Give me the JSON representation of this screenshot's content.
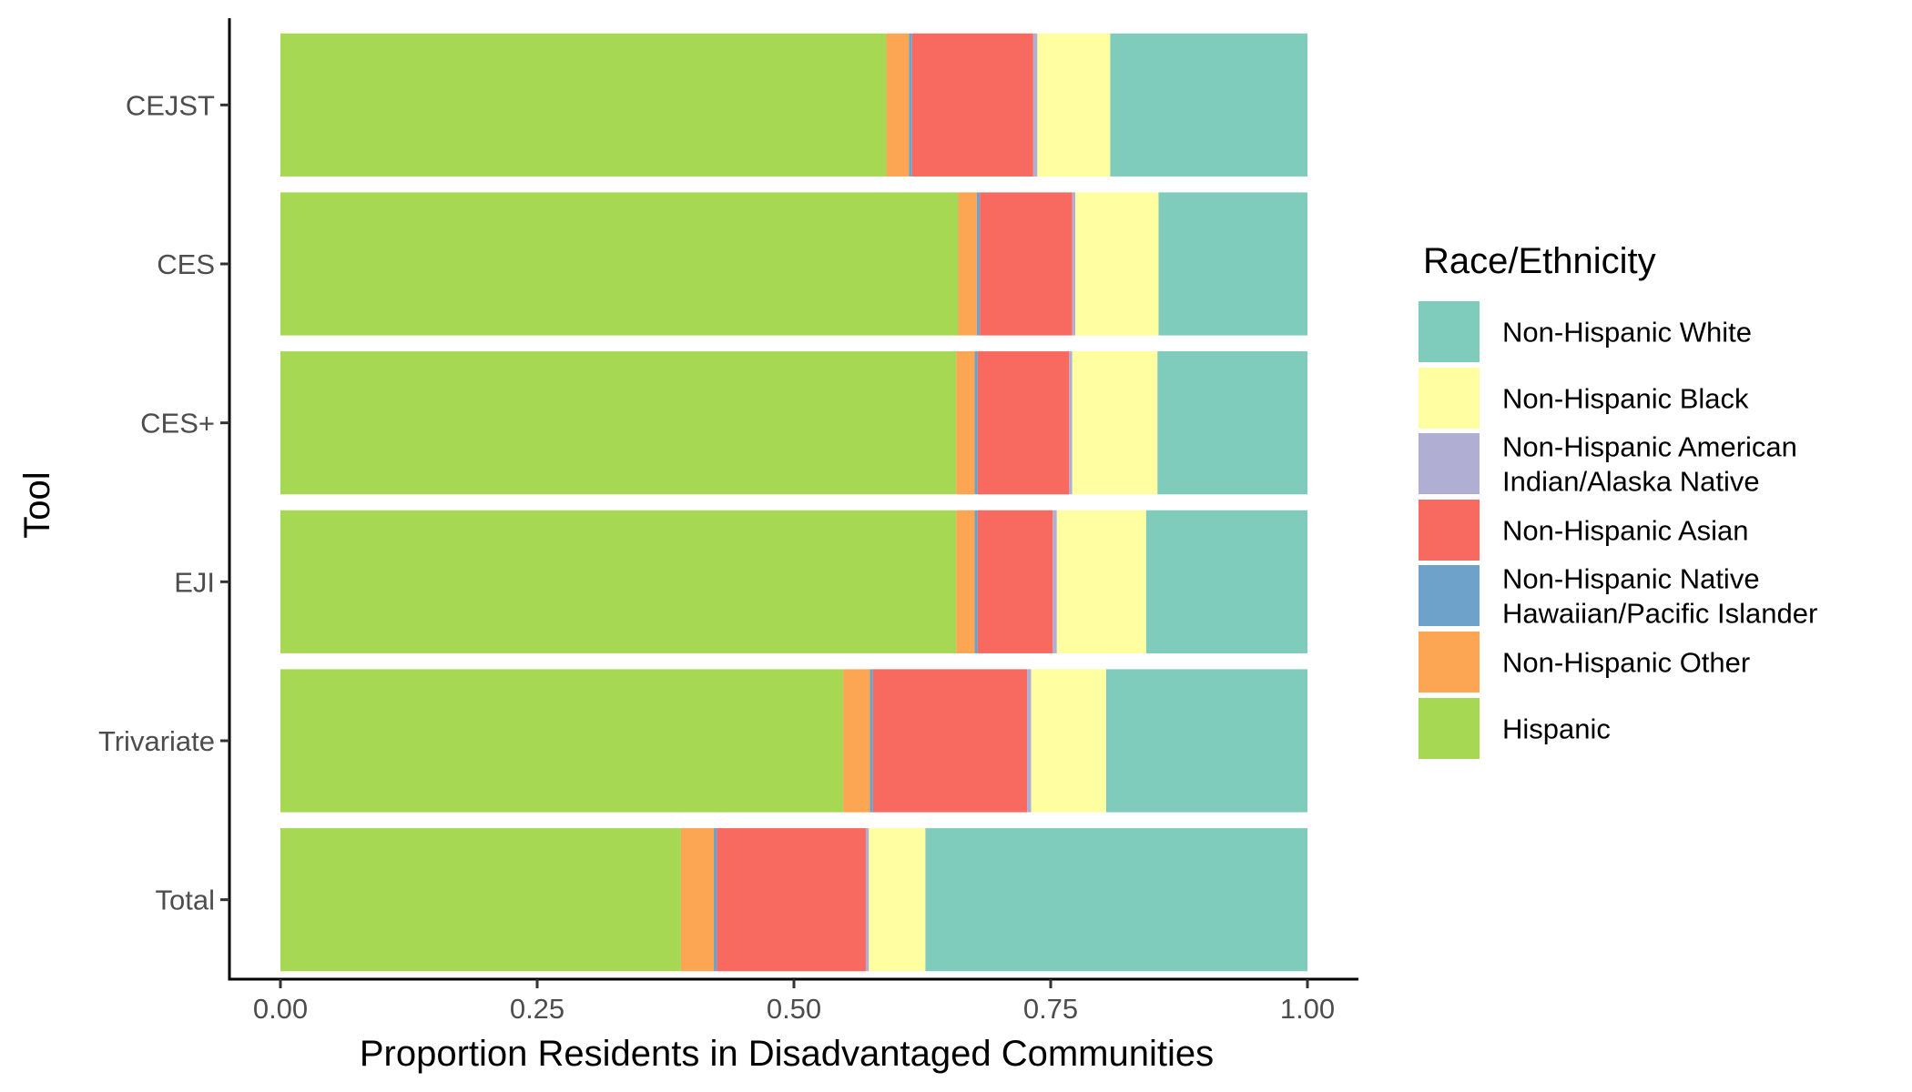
{
  "chart_data": {
    "type": "bar",
    "orientation": "horizontal",
    "stacked": true,
    "categories": [
      "CEJST",
      "CES",
      "CES+",
      "EJI",
      "Trivariate",
      "Total"
    ],
    "series": [
      {
        "name": "Hispanic",
        "color": "#A6D854",
        "values": [
          0.59,
          0.66,
          0.658,
          0.658,
          0.548,
          0.39
        ]
      },
      {
        "name": "Non-Hispanic Other",
        "color": "#FCA552",
        "values": [
          0.022,
          0.018,
          0.018,
          0.018,
          0.026,
          0.032
        ]
      },
      {
        "name": "Non-Hispanic Native Hawaiian/Pacific Islander",
        "color": "#6FA2CA",
        "values": [
          0.003,
          0.003,
          0.003,
          0.003,
          0.003,
          0.003
        ]
      },
      {
        "name": "Non-Hispanic Asian",
        "color": "#F8695F",
        "values": [
          0.118,
          0.09,
          0.089,
          0.073,
          0.15,
          0.145
        ]
      },
      {
        "name": "Non-Hispanic American Indian/Alaska Native",
        "color": "#B1AED4",
        "values": [
          0.004,
          0.003,
          0.003,
          0.004,
          0.004,
          0.003
        ]
      },
      {
        "name": "Non-Hispanic Black",
        "color": "#FFFFA1",
        "values": [
          0.071,
          0.081,
          0.083,
          0.087,
          0.073,
          0.055
        ]
      },
      {
        "name": "Non-Hispanic White",
        "color": "#7FCBBC",
        "values": [
          0.192,
          0.145,
          0.146,
          0.157,
          0.196,
          0.372
        ]
      }
    ],
    "xlim": [
      -0.05,
      1.05
    ],
    "xticks": [
      "0.00",
      "0.25",
      "0.50",
      "0.75",
      "1.00"
    ],
    "xlabel": "Proportion Residents in Disadvantaged Communities",
    "ylabel": "Tool",
    "grid": false,
    "legend": {
      "title": "Race/Ethnicity",
      "position": "right",
      "items": [
        {
          "lines": [
            "Non-Hispanic White"
          ],
          "color": "#7FCBBC"
        },
        {
          "lines": [
            "Non-Hispanic Black"
          ],
          "color": "#FFFFA1"
        },
        {
          "lines": [
            "Non-Hispanic American",
            "Indian/Alaska Native"
          ],
          "color": "#B1AED4"
        },
        {
          "lines": [
            "Non-Hispanic Asian"
          ],
          "color": "#F8695F"
        },
        {
          "lines": [
            "Non-Hispanic Native",
            "Hawaiian/Pacific Islander"
          ],
          "color": "#6FA2CA"
        },
        {
          "lines": [
            "Non-Hispanic Other"
          ],
          "color": "#FCA552"
        },
        {
          "lines": [
            "Hispanic"
          ],
          "color": "#A6D854"
        }
      ]
    }
  }
}
